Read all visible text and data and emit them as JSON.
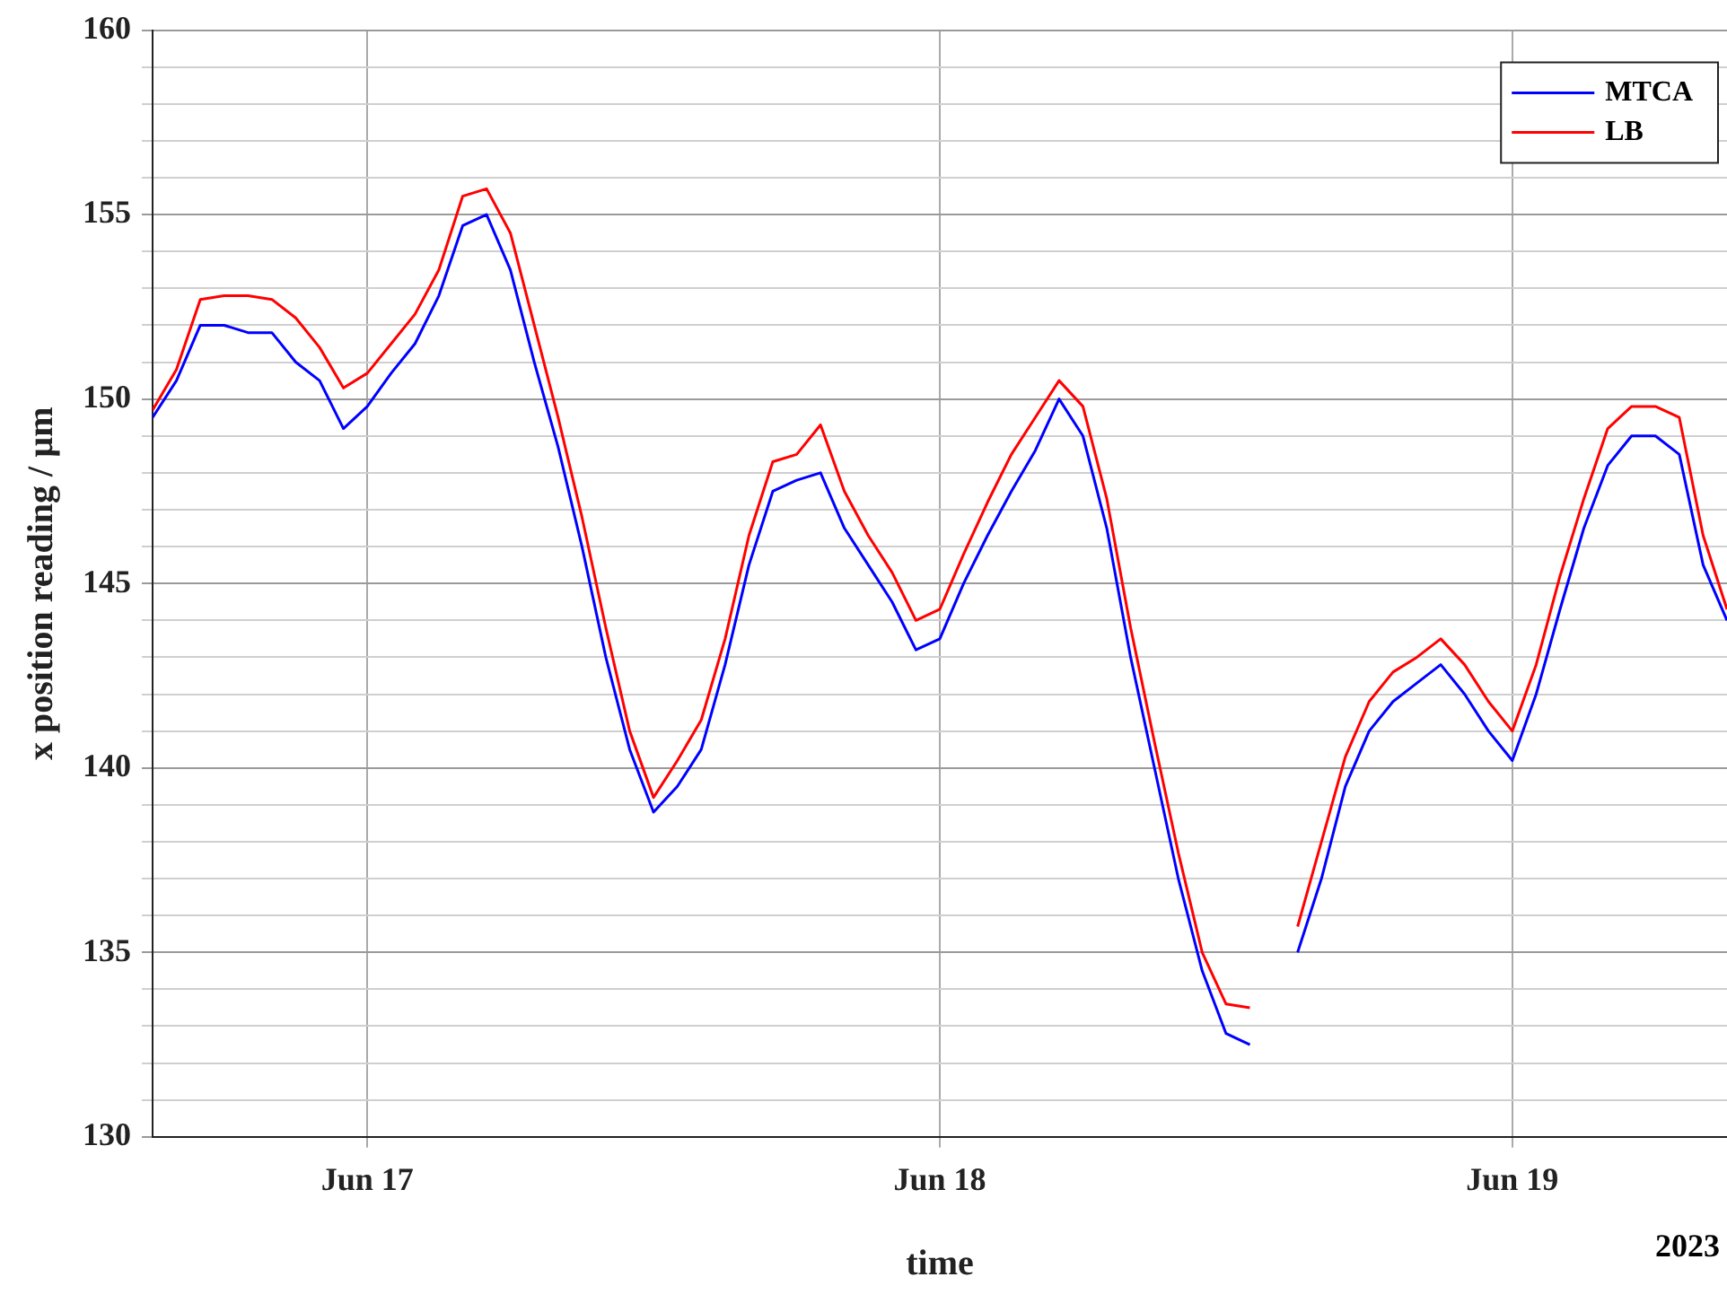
{
  "chart_data": {
    "type": "line",
    "xlabel": "time",
    "ylabel": "x position reading / µm",
    "annotations": [
      "2023"
    ],
    "x": [
      "2023-06-16T15:00",
      "2023-06-16T16:00",
      "2023-06-16T17:00",
      "2023-06-16T18:00",
      "2023-06-16T19:00",
      "2023-06-16T20:00",
      "2023-06-16T21:00",
      "2023-06-16T22:00",
      "2023-06-16T23:00",
      "2023-06-17T00:00",
      "2023-06-17T01:00",
      "2023-06-17T02:00",
      "2023-06-17T03:00",
      "2023-06-17T04:00",
      "2023-06-17T05:00",
      "2023-06-17T06:00",
      "2023-06-17T07:00",
      "2023-06-17T08:00",
      "2023-06-17T09:00",
      "2023-06-17T10:00",
      "2023-06-17T11:00",
      "2023-06-17T12:00",
      "2023-06-17T13:00",
      "2023-06-17T14:00",
      "2023-06-17T15:00",
      "2023-06-17T16:00",
      "2023-06-17T17:00",
      "2023-06-17T18:00",
      "2023-06-17T19:00",
      "2023-06-17T20:00",
      "2023-06-17T21:00",
      "2023-06-17T22:00",
      "2023-06-17T23:00",
      "2023-06-18T00:00",
      "2023-06-18T01:00",
      "2023-06-18T02:00",
      "2023-06-18T03:00",
      "2023-06-18T04:00",
      "2023-06-18T05:00",
      "2023-06-18T06:00",
      "2023-06-18T07:00",
      "2023-06-18T08:00",
      "2023-06-18T09:00",
      "2023-06-18T10:00",
      "2023-06-18T11:00",
      "2023-06-18T12:00",
      "2023-06-18T13:00",
      "2023-06-18T14:00",
      "2023-06-18T15:00",
      "2023-06-18T16:00",
      "2023-06-18T17:00",
      "2023-06-18T18:00",
      "2023-06-18T19:00",
      "2023-06-18T20:00",
      "2023-06-18T21:00",
      "2023-06-18T22:00",
      "2023-06-18T23:00",
      "2023-06-19T00:00",
      "2023-06-19T01:00",
      "2023-06-19T02:00",
      "2023-06-19T03:00",
      "2023-06-19T04:00",
      "2023-06-19T05:00",
      "2023-06-19T06:00",
      "2023-06-19T07:00",
      "2023-06-19T08:00",
      "2023-06-19T09:00"
    ],
    "series": [
      {
        "name": "MTCA",
        "color": "#0000ff",
        "values": [
          149.5,
          150.5,
          152.0,
          152.0,
          151.8,
          151.8,
          151.0,
          150.5,
          149.2,
          149.8,
          150.7,
          151.5,
          152.8,
          154.7,
          155.0,
          153.5,
          151.0,
          148.7,
          146.0,
          143.0,
          140.5,
          138.8,
          139.5,
          140.5,
          142.8,
          145.5,
          147.5,
          147.8,
          148.0,
          146.5,
          145.5,
          144.5,
          143.2,
          143.5,
          145.0,
          146.3,
          147.5,
          148.6,
          150.0,
          149.0,
          146.5,
          143.0,
          140.0,
          137.0,
          134.5,
          132.8,
          132.5,
          null,
          135.0,
          137.0,
          139.5,
          141.0,
          141.8,
          142.3,
          142.8,
          142.0,
          141.0,
          140.2,
          142.0,
          144.3,
          146.5,
          148.2,
          149.0,
          149.0,
          148.5,
          145.5,
          144.0
        ]
      },
      {
        "name": "LB",
        "color": "#ff0000",
        "values": [
          149.7,
          150.8,
          152.7,
          152.8,
          152.8,
          152.7,
          152.2,
          151.4,
          150.3,
          150.7,
          151.5,
          152.3,
          153.5,
          155.5,
          155.7,
          154.5,
          152.0,
          149.5,
          146.8,
          143.8,
          141.0,
          139.2,
          140.2,
          141.3,
          143.5,
          146.3,
          148.3,
          148.5,
          149.3,
          147.5,
          146.3,
          145.3,
          144.0,
          144.3,
          145.8,
          147.2,
          148.5,
          149.5,
          150.5,
          149.8,
          147.3,
          143.8,
          140.7,
          137.7,
          135.0,
          133.6,
          133.5,
          null,
          135.7,
          138.0,
          140.3,
          141.8,
          142.6,
          143.0,
          143.5,
          142.8,
          141.8,
          141.0,
          142.8,
          145.2,
          147.3,
          149.2,
          149.8,
          149.8,
          149.5,
          146.3,
          144.3
        ]
      }
    ],
    "xlim": [
      "2023-06-16T15:00",
      "2023-06-19T09:00"
    ],
    "xticks": [
      {
        "value": "2023-06-17",
        "label": "Jun 17"
      },
      {
        "value": "2023-06-18",
        "label": "Jun 18"
      },
      {
        "value": "2023-06-19",
        "label": "Jun 19"
      }
    ],
    "ylim": [
      130,
      160
    ],
    "yticks": [
      130,
      {
        "value": 131,
        "label": null
      },
      {
        "value": 132,
        "label": null
      },
      {
        "value": 133,
        "label": null
      },
      {
        "value": 134,
        "label": null
      },
      135,
      {
        "value": 136,
        "label": null
      },
      {
        "value": 137,
        "label": null
      },
      {
        "value": 138,
        "label": null
      },
      {
        "value": 139,
        "label": null
      },
      140,
      {
        "value": 141,
        "label": null
      },
      {
        "value": 142,
        "label": null
      },
      {
        "value": 143,
        "label": null
      },
      {
        "value": 144,
        "label": null
      },
      145,
      {
        "value": 146,
        "label": null
      },
      {
        "value": 147,
        "label": null
      },
      {
        "value": 148,
        "label": null
      },
      {
        "value": 149,
        "label": null
      },
      150,
      {
        "value": 151,
        "label": null
      },
      {
        "value": 152,
        "label": null
      },
      {
        "value": 153,
        "label": null
      },
      {
        "value": 154,
        "label": null
      },
      155,
      {
        "value": 156,
        "label": null
      },
      {
        "value": 157,
        "label": null
      },
      {
        "value": 158,
        "label": null
      },
      {
        "value": 159,
        "label": null
      },
      160
    ],
    "grid": true,
    "legend": "top right",
    "marker": "none",
    "line_style": "solid"
  }
}
